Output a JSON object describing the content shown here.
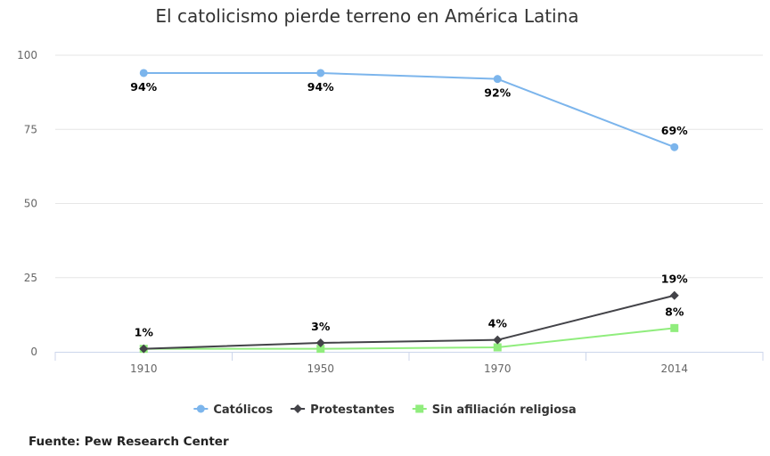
{
  "chart_data": {
    "type": "line",
    "title": "El catolicismo pierde terreno en América Latina",
    "categories": [
      "1910",
      "1950",
      "1970",
      "2014"
    ],
    "ylim": [
      0,
      100
    ],
    "yticks": [
      "0",
      "25",
      "50",
      "75",
      "100"
    ],
    "xlabel": "",
    "ylabel": "",
    "grid": true,
    "legend_position": "bottom-center",
    "series": [
      {
        "name": "Católicos",
        "color": "#7cb5ec",
        "marker": "circle",
        "values": [
          94,
          94,
          92,
          69
        ],
        "labels": [
          "94%",
          "94%",
          "92%",
          "69%"
        ],
        "label_positions": [
          "below",
          "below",
          "below",
          "above"
        ]
      },
      {
        "name": "Protestantes",
        "color": "#434348",
        "marker": "diamond",
        "values": [
          1,
          3,
          4,
          19
        ],
        "labels": [
          "1%",
          "3%",
          "4%",
          "19%"
        ],
        "label_positions": [
          "above",
          "above",
          "above",
          "above"
        ]
      },
      {
        "name": "Sin afiliación religiosa",
        "color": "#90ed7d",
        "marker": "square",
        "values": [
          1,
          1,
          1.5,
          8
        ],
        "labels": [
          "",
          "",
          "",
          "8%"
        ],
        "label_positions": [
          "above",
          "above",
          "above",
          "above"
        ]
      }
    ]
  },
  "source": "Fuente: Pew Research Center"
}
